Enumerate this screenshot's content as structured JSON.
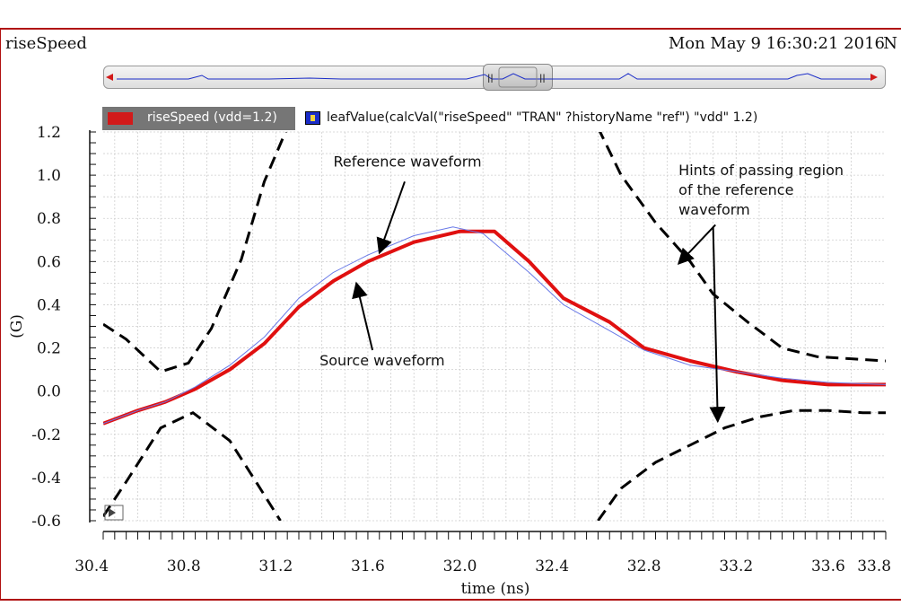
{
  "window": {
    "signal_name": "riseSpeed",
    "timestamp": "Mon May 9 16:30:21 2016",
    "edge_char": "N"
  },
  "legend": [
    {
      "label": "riseSpeed (vdd=1.2)",
      "color": "#d21a1a",
      "icon": "color-swatch"
    },
    {
      "label": "leafValue(calcVal(\"riseSpeed\" \"TRAN\" ?historyName \"ref\") \"vdd\" 1.2)",
      "color": "#1a2cc8",
      "icon": "lock-icon"
    }
  ],
  "chart_data": {
    "type": "line",
    "xlabel": "time (ns)",
    "ylabel": "(G)",
    "xlim": [
      30.45,
      33.85
    ],
    "ylim": [
      -0.6,
      1.2
    ],
    "x_ticks": [
      "30.4",
      "30.8",
      "31.2",
      "31.6",
      "32.0",
      "32.4",
      "32.8",
      "33.2",
      "33.6",
      "33.8"
    ],
    "y_ticks": [
      "1.2",
      "1.0",
      "0.8",
      "0.6",
      "0.4",
      "0.2",
      "0.0",
      "-0.2",
      "-0.4",
      "-0.6"
    ],
    "grid": true,
    "series": [
      {
        "color": "#e01010",
        "style": "solid",
        "width": 4,
        "x": [
          30.45,
          30.6,
          30.72,
          30.85,
          31.0,
          31.15,
          31.3,
          31.45,
          31.6,
          31.8,
          32.0,
          32.15,
          32.3,
          32.45,
          32.65,
          32.8,
          33.0,
          33.2,
          33.4,
          33.6,
          33.85
        ],
        "y": [
          -0.15,
          -0.09,
          -0.05,
          0.01,
          0.1,
          0.22,
          0.39,
          0.51,
          0.6,
          0.69,
          0.74,
          0.74,
          0.6,
          0.43,
          0.32,
          0.2,
          0.14,
          0.09,
          0.05,
          0.03,
          0.03
        ]
      },
      {
        "color": "#6a7ae8",
        "style": "solid",
        "width": 1,
        "x": [
          30.45,
          30.6,
          30.72,
          30.85,
          31.0,
          31.15,
          31.3,
          31.45,
          31.6,
          31.8,
          31.97,
          32.1,
          32.3,
          32.45,
          32.65,
          32.8,
          33.0,
          33.2,
          33.4,
          33.6,
          33.85
        ],
        "y": [
          -0.15,
          -0.09,
          -0.05,
          0.02,
          0.12,
          0.25,
          0.43,
          0.55,
          0.63,
          0.72,
          0.76,
          0.73,
          0.55,
          0.4,
          0.28,
          0.19,
          0.12,
          0.09,
          0.06,
          0.04,
          0.03
        ]
      },
      {
        "color": "#000000",
        "style": "dashed",
        "width": 3,
        "x": [
          30.45,
          30.55,
          30.7,
          30.82,
          30.92,
          31.05,
          31.15,
          31.25
        ],
        "y": [
          0.31,
          0.24,
          0.09,
          0.13,
          0.29,
          0.61,
          0.97,
          1.22
        ]
      },
      {
        "color": "#000000",
        "style": "dashed",
        "width": 3,
        "x": [
          30.45,
          30.55,
          30.7,
          30.84,
          31.0,
          31.12,
          31.22
        ],
        "y": [
          -0.58,
          -0.42,
          -0.17,
          -0.1,
          -0.23,
          -0.43,
          -0.6
        ]
      },
      {
        "color": "#000000",
        "style": "dashed",
        "width": 3,
        "x": [
          32.6,
          32.7,
          32.85,
          33.0,
          33.1,
          33.25,
          33.4,
          33.55,
          33.7,
          33.85
        ],
        "y": [
          1.22,
          1.0,
          0.78,
          0.6,
          0.45,
          0.32,
          0.2,
          0.16,
          0.15,
          0.14
        ]
      },
      {
        "color": "#000000",
        "style": "dashed",
        "width": 3,
        "x": [
          32.6,
          32.7,
          32.85,
          33.0,
          33.15,
          33.3,
          33.45,
          33.6,
          33.75,
          33.85
        ],
        "y": [
          -0.6,
          -0.45,
          -0.33,
          -0.25,
          -0.17,
          -0.12,
          -0.09,
          -0.09,
          -0.1,
          -0.1
        ]
      }
    ],
    "annotations": [
      {
        "lines": [
          "Reference waveform"
        ],
        "x": 31.45,
        "y": 1.04,
        "arrow_to": [
          31.65,
          0.64
        ]
      },
      {
        "lines": [
          "Source waveform"
        ],
        "x": 31.39,
        "y": 0.12,
        "arrow_to": [
          31.55,
          0.5
        ]
      },
      {
        "lines": [
          "Hints of passing region",
          "of the reference",
          "waveform"
        ],
        "x": 32.95,
        "y": 1.0,
        "arrow_to": [
          32.95,
          0.59
        ]
      },
      {
        "lines": [],
        "x": 33.1,
        "y": 0.73,
        "arrow_to": [
          33.12,
          -0.14
        ]
      }
    ]
  },
  "overview": {
    "left_arrow": "left-arrow-icon",
    "right_arrow": "right-arrow-icon",
    "thumb_grip": "ll"
  }
}
